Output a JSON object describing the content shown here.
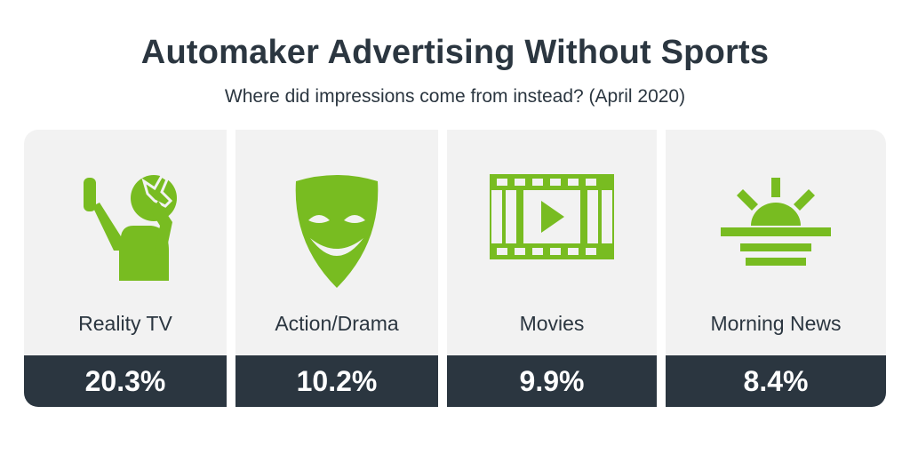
{
  "chart_data": {
    "type": "bar",
    "title": "Automaker Advertising Without Sports",
    "subtitle": "Where did impressions come from instead? (April 2020)",
    "categories": [
      "Reality TV",
      "Action/Drama",
      "Movies",
      "Morning News"
    ],
    "values": [
      20.3,
      10.2,
      9.9,
      8.4
    ],
    "value_labels": [
      "20.3%",
      "10.2%",
      "9.9%",
      "8.4%"
    ],
    "icons": [
      "selfie-person-icon",
      "theater-mask-icon",
      "film-strip-play-icon",
      "sunrise-icon"
    ],
    "colors": {
      "accent": "#78bc21",
      "dark": "#2b3640",
      "panel": "#f2f2f2"
    }
  }
}
